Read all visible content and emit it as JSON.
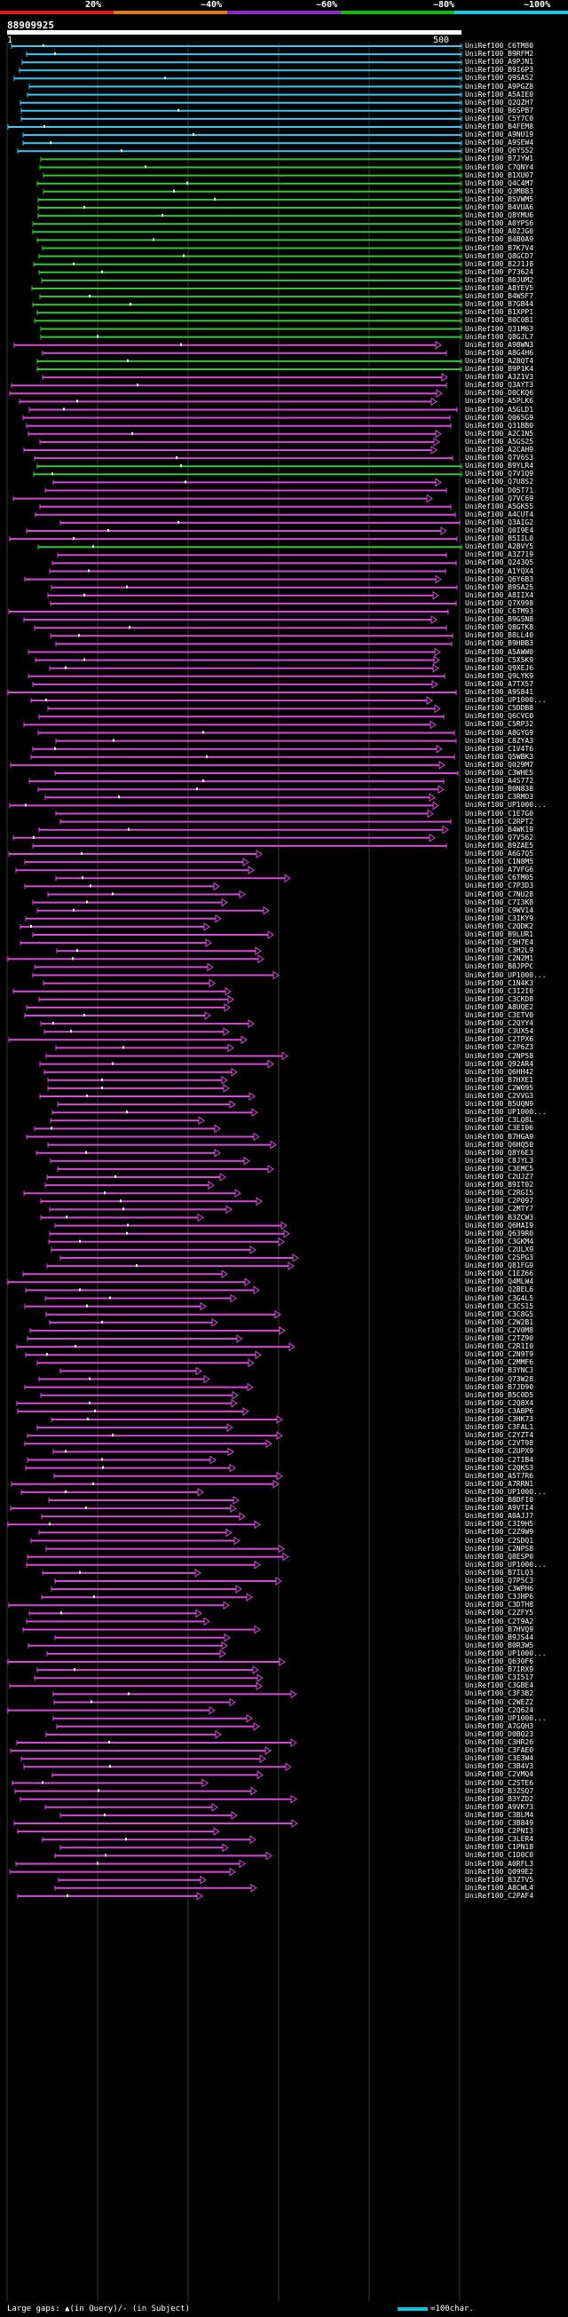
{
  "scale": {
    "labels": [
      "20%",
      "~40%",
      "~60%",
      "~80%",
      "~100%"
    ],
    "colors": [
      "#e0181e",
      "#e07a1e",
      "#8a2bbe",
      "#18b418",
      "#1ec8dc"
    ]
  },
  "query": {
    "id": "88909925",
    "start_label": "1",
    "end_label": "500"
  },
  "colors": {
    "cyan": "#3cc8f0",
    "green": "#32c832",
    "magenta": "#d24bd2",
    "grid": "#3a3a3a",
    "insert": "#ffffff"
  },
  "hits": [
    {
      "label": "UniRef100_C6TM80",
      "color": "cyan"
    },
    {
      "label": "UniRef100_B9RFM2",
      "color": "cyan"
    },
    {
      "label": "UniRef100_A9PJN1",
      "color": "cyan"
    },
    {
      "label": "UniRef100_B9I6P3",
      "color": "cyan"
    },
    {
      "label": "UniRef100_Q9SAS2",
      "color": "cyan"
    },
    {
      "label": "UniRef100_A9PGZ8",
      "color": "cyan"
    },
    {
      "label": "UniRef100_A5AIE0",
      "color": "cyan"
    },
    {
      "label": "UniRef100_Q2QZH7",
      "color": "cyan"
    },
    {
      "label": "UniRef100_B6SPB7",
      "color": "cyan"
    },
    {
      "label": "UniRef100_C5Y7C0",
      "color": "cyan"
    },
    {
      "label": "UniRef100_B4FEM8",
      "color": "cyan"
    },
    {
      "label": "UniRef100_A9NU19",
      "color": "cyan"
    },
    {
      "label": "UniRef100_A9SEW4",
      "color": "cyan"
    },
    {
      "label": "UniRef100_Q6YSS2",
      "color": "cyan"
    },
    {
      "label": "UniRef100_B7JYW1",
      "color": "green"
    },
    {
      "label": "UniRef100_C7QNY4",
      "color": "green"
    },
    {
      "label": "UniRef100_B1XU07",
      "color": "green"
    },
    {
      "label": "UniRef100_Q4C4M7",
      "color": "green"
    },
    {
      "label": "UniRef100_Q3MBB3",
      "color": "green"
    },
    {
      "label": "UniRef100_B5VWM5",
      "color": "green"
    },
    {
      "label": "UniRef100_B4VUA6",
      "color": "green"
    },
    {
      "label": "UniRef100_Q8YMU6",
      "color": "green"
    },
    {
      "label": "UniRef100_A0YPS6",
      "color": "green"
    },
    {
      "label": "UniRef100_A0ZJG0",
      "color": "green"
    },
    {
      "label": "UniRef100_B4B0A9",
      "color": "green"
    },
    {
      "label": "UniRef100_B7K7V4",
      "color": "green"
    },
    {
      "label": "UniRef100_Q8GCD7",
      "color": "green"
    },
    {
      "label": "UniRef100_B2J1J8",
      "color": "green"
    },
    {
      "label": "UniRef100_P73624",
      "color": "green"
    },
    {
      "label": "UniRef100_B0JUM2",
      "color": "green"
    },
    {
      "label": "UniRef100_A8YEV5",
      "color": "green"
    },
    {
      "label": "UniRef100_B4WSF7",
      "color": "green"
    },
    {
      "label": "UniRef100_B7GB44",
      "color": "green"
    },
    {
      "label": "UniRef100_B1XPP1",
      "color": "green"
    },
    {
      "label": "UniRef100_B0C0B1",
      "color": "green"
    },
    {
      "label": "UniRef100_Q31M63",
      "color": "green"
    },
    {
      "label": "UniRef100_Q8GJL7",
      "color": "green"
    },
    {
      "label": "UniRef100_A9BWN3",
      "color": "magenta"
    },
    {
      "label": "UniRef100_A8G4H6",
      "color": "magenta"
    },
    {
      "label": "UniRef100_A2BQT4",
      "color": "green"
    },
    {
      "label": "UniRef100_B9P1K4",
      "color": "green"
    },
    {
      "label": "UniRef100_A3Z1V3",
      "color": "magenta"
    },
    {
      "label": "UniRef100_Q3AYT3",
      "color": "magenta"
    },
    {
      "label": "UniRef100_D0CKQ6",
      "color": "magenta"
    },
    {
      "label": "UniRef100_A5PLK6",
      "color": "magenta"
    },
    {
      "label": "UniRef100_A5GLD1",
      "color": "magenta"
    },
    {
      "label": "UniRef100_Q065G9",
      "color": "magenta"
    },
    {
      "label": "UniRef100_Q31BB0",
      "color": "magenta"
    },
    {
      "label": "UniRef100_A2C1N5",
      "color": "magenta"
    },
    {
      "label": "UniRef100_A5GS25",
      "color": "magenta"
    },
    {
      "label": "UniRef100_A2CAH9",
      "color": "magenta"
    },
    {
      "label": "UniRef100_Q7V6S3",
      "color": "magenta"
    },
    {
      "label": "UniRef100_B9YLR4",
      "color": "green"
    },
    {
      "label": "UniRef100_Q7V1Q9",
      "color": "green"
    },
    {
      "label": "UniRef100_Q7U8S2",
      "color": "magenta"
    },
    {
      "label": "UniRef100_D05T71",
      "color": "magenta"
    },
    {
      "label": "UniRef100_Q7VC69",
      "color": "magenta"
    },
    {
      "label": "UniRef100_A5GK55",
      "color": "magenta"
    },
    {
      "label": "UniRef100_A4CUT4",
      "color": "magenta"
    },
    {
      "label": "UniRef100_Q3AIG2",
      "color": "magenta"
    },
    {
      "label": "UniRef100_Q0I9E4",
      "color": "magenta"
    },
    {
      "label": "UniRef100_B5IIL0",
      "color": "magenta"
    },
    {
      "label": "UniRef100_A2BVY5",
      "color": "green"
    },
    {
      "label": "UniRef100_A3Z719",
      "color": "magenta"
    },
    {
      "label": "UniRef100_Q243Q5",
      "color": "magenta"
    },
    {
      "label": "UniRef100_A1YQX4",
      "color": "magenta"
    },
    {
      "label": "UniRef100_Q6Y6B3",
      "color": "magenta"
    },
    {
      "label": "UniRef100_B9SA25",
      "color": "magenta"
    },
    {
      "label": "UniRef100_A8IIX4",
      "color": "magenta"
    },
    {
      "label": "UniRef100_Q7X998",
      "color": "magenta"
    },
    {
      "label": "UniRef100_C6TM93",
      "color": "magenta"
    },
    {
      "label": "UniRef100_B9GSN8",
      "color": "magenta"
    },
    {
      "label": "UniRef100_Q8GTK8",
      "color": "magenta"
    },
    {
      "label": "UniRef100_B8LL40",
      "color": "magenta"
    },
    {
      "label": "UniRef100_B9HBB3",
      "color": "magenta"
    },
    {
      "label": "UniRef100_A5AWW0",
      "color": "magenta"
    },
    {
      "label": "UniRef100_C5X5K9",
      "color": "magenta"
    },
    {
      "label": "UniRef100_Q9XEJ6",
      "color": "magenta"
    },
    {
      "label": "UniRef100_Q9LYK9",
      "color": "magenta"
    },
    {
      "label": "UniRef100_A7TX57",
      "color": "magenta"
    },
    {
      "label": "UniRef100_A9S841",
      "color": "magenta"
    },
    {
      "label": "UniRef100_UP1000...",
      "color": "magenta"
    },
    {
      "label": "UniRef100_C5DDB8",
      "color": "magenta"
    },
    {
      "label": "UniRef100_Q6CVC0",
      "color": "magenta"
    },
    {
      "label": "UniRef100_C5RP32",
      "color": "magenta"
    },
    {
      "label": "UniRef100_A8GYG9",
      "color": "magenta"
    },
    {
      "label": "UniRef100_C8ZYA3",
      "color": "magenta"
    },
    {
      "label": "UniRef100_C1V4T6",
      "color": "magenta"
    },
    {
      "label": "UniRef100_Q5WBK3",
      "color": "magenta"
    },
    {
      "label": "UniRef100_Q029M7",
      "color": "magenta"
    },
    {
      "label": "UniRef100_C3WHE5",
      "color": "magenta"
    },
    {
      "label": "UniRef100_A4S772",
      "color": "magenta"
    },
    {
      "label": "UniRef100_B0N838",
      "color": "magenta"
    },
    {
      "label": "UniRef100_C3RMO3",
      "color": "magenta"
    },
    {
      "label": "UniRef100_UP1000...",
      "color": "magenta"
    },
    {
      "label": "UniRef100_C1E7G0",
      "color": "magenta"
    },
    {
      "label": "UniRef100_C2RPT2",
      "color": "magenta"
    },
    {
      "label": "UniRef100_B4WK19",
      "color": "magenta"
    },
    {
      "label": "UniRef100_Q7V562",
      "color": "magenta"
    },
    {
      "label": "UniRef100_B9ZAE5",
      "color": "magenta"
    },
    {
      "label": "UniRef100_A6G7Q5",
      "color": "magenta"
    },
    {
      "label": "UniRef100_C1N8M5",
      "color": "magenta"
    },
    {
      "label": "UniRef100_A7VFG6",
      "color": "magenta"
    },
    {
      "label": "UniRef100_C6TM05",
      "color": "magenta"
    },
    {
      "label": "UniRef100_C7P3D3",
      "color": "magenta"
    },
    {
      "label": "UniRef100_C7NU28",
      "color": "magenta"
    },
    {
      "label": "UniRef100_C7I3K8",
      "color": "magenta"
    },
    {
      "label": "UniRef100_C9WV14",
      "color": "magenta"
    },
    {
      "label": "UniRef100_C3IKY9",
      "color": "magenta"
    },
    {
      "label": "UniRef100_C2QDK2",
      "color": "magenta"
    },
    {
      "label": "UniRef100_B9LUR1",
      "color": "magenta"
    },
    {
      "label": "UniRef100_C9H7E4",
      "color": "magenta"
    },
    {
      "label": "UniRef100_C3H2L9",
      "color": "magenta"
    },
    {
      "label": "UniRef100_C2N2M1",
      "color": "magenta"
    },
    {
      "label": "UniRef100_B8JPPC",
      "color": "magenta"
    },
    {
      "label": "UniRef100_UP1000...",
      "color": "magenta"
    },
    {
      "label": "UniRef100_C1N4K3",
      "color": "magenta"
    },
    {
      "label": "UniRef100_C3I2I0",
      "color": "magenta"
    },
    {
      "label": "UniRef100_C3CKD8",
      "color": "magenta"
    },
    {
      "label": "UniRef100_A8UQE2",
      "color": "magenta"
    },
    {
      "label": "UniRef100_C3ETV0",
      "color": "magenta"
    },
    {
      "label": "UniRef100_C2QYY4",
      "color": "magenta"
    },
    {
      "label": "UniRef100_C3UX54",
      "color": "magenta"
    },
    {
      "label": "UniRef100_C2TPX6",
      "color": "magenta"
    },
    {
      "label": "UniRef100_C2P6Z3",
      "color": "magenta"
    },
    {
      "label": "UniRef100_C2NP58",
      "color": "magenta"
    },
    {
      "label": "UniRef100_Q92AR4",
      "color": "magenta"
    },
    {
      "label": "UniRef100_Q6HH42",
      "color": "magenta"
    },
    {
      "label": "UniRef100_B7HXE1",
      "color": "magenta"
    },
    {
      "label": "UniRef100_C2W095",
      "color": "magenta"
    },
    {
      "label": "UniRef100_C2VVG3",
      "color": "magenta"
    },
    {
      "label": "UniRef100_B5UQN9",
      "color": "magenta"
    },
    {
      "label": "UniRef100_UP1000...",
      "color": "magenta"
    },
    {
      "label": "UniRef100_C3LQ8L",
      "color": "magenta"
    },
    {
      "label": "UniRef100_C3EI06",
      "color": "magenta"
    },
    {
      "label": "UniRef100_B7HGA9",
      "color": "magenta"
    },
    {
      "label": "UniRef100_Q6HQ50",
      "color": "magenta"
    },
    {
      "label": "UniRef100_Q8Y6E3",
      "color": "magenta"
    },
    {
      "label": "UniRef100_C8JYL3",
      "color": "magenta"
    },
    {
      "label": "UniRef100_C3EMC5",
      "color": "magenta"
    },
    {
      "label": "UniRef100_C2UJZ7",
      "color": "magenta"
    },
    {
      "label": "UniRef100_B9IT02",
      "color": "magenta"
    },
    {
      "label": "UniRef100_C2RGI5",
      "color": "magenta"
    },
    {
      "label": "UniRef100_C2P097",
      "color": "magenta"
    },
    {
      "label": "UniRef100_C2MTY7",
      "color": "magenta"
    },
    {
      "label": "UniRef100_B3ZCW3",
      "color": "magenta"
    },
    {
      "label": "UniRef100_Q6HAI9",
      "color": "magenta"
    },
    {
      "label": "UniRef100_Q639R0",
      "color": "magenta"
    },
    {
      "label": "UniRef100_C3GKM4",
      "color": "magenta"
    },
    {
      "label": "UniRef100_C2ULX9",
      "color": "magenta"
    },
    {
      "label": "UniRef100_C2SPG3",
      "color": "magenta"
    },
    {
      "label": "UniRef100_Q81FG9",
      "color": "magenta"
    },
    {
      "label": "UniRef100_C1EZ66",
      "color": "magenta"
    },
    {
      "label": "UniRef100_Q4MLW4",
      "color": "magenta"
    },
    {
      "label": "UniRef100_Q2BEL6",
      "color": "magenta"
    },
    {
      "label": "UniRef100_C3G4L5",
      "color": "magenta"
    },
    {
      "label": "UniRef100_C3CS15",
      "color": "magenta"
    },
    {
      "label": "UniRef100_C3C8G5",
      "color": "magenta"
    },
    {
      "label": "UniRef100_C2W2B1",
      "color": "magenta"
    },
    {
      "label": "UniRef100_C2V0M8",
      "color": "magenta"
    },
    {
      "label": "UniRef100_C2TZ90",
      "color": "magenta"
    },
    {
      "label": "UniRef100_C2R1I0",
      "color": "magenta"
    },
    {
      "label": "UniRef100_C2N9T9",
      "color": "magenta"
    },
    {
      "label": "UniRef100_C2MMF6",
      "color": "magenta"
    },
    {
      "label": "UniRef100_B3YNC3",
      "color": "magenta"
    },
    {
      "label": "UniRef100_Q73W28",
      "color": "magenta"
    },
    {
      "label": "UniRef100_B7JD90",
      "color": "magenta"
    },
    {
      "label": "UniRef100_B5C0D5",
      "color": "magenta"
    },
    {
      "label": "UniRef100_C2Q8X4",
      "color": "magenta"
    },
    {
      "label": "UniRef100_C3ABP6",
      "color": "magenta"
    },
    {
      "label": "UniRef100_C3HK73",
      "color": "magenta"
    },
    {
      "label": "UniRef100_C3FAL1",
      "color": "magenta"
    },
    {
      "label": "UniRef100_C2YZT4",
      "color": "magenta"
    },
    {
      "label": "UniRef100_C2VT98",
      "color": "magenta"
    },
    {
      "label": "UniRef100_C2UPX9",
      "color": "magenta"
    },
    {
      "label": "UniRef100_C2TIB4",
      "color": "magenta"
    },
    {
      "label": "UniRef100_C2QKS3",
      "color": "magenta"
    },
    {
      "label": "UniRef100_A5T7R6",
      "color": "magenta"
    },
    {
      "label": "UniRef100_A7RRN1",
      "color": "magenta"
    },
    {
      "label": "UniRef100_UP1000...",
      "color": "magenta"
    },
    {
      "label": "UniRef100_B8DFI0",
      "color": "magenta"
    },
    {
      "label": "UniRef100_A9VTI4",
      "color": "magenta"
    },
    {
      "label": "UniRef100_A0AJJ7",
      "color": "magenta"
    },
    {
      "label": "UniRef100_C3I9H5",
      "color": "magenta"
    },
    {
      "label": "UniRef100_C2Z9W9",
      "color": "magenta"
    },
    {
      "label": "UniRef100_C2SDQ1",
      "color": "magenta"
    },
    {
      "label": "UniRef100_C2NPS8",
      "color": "magenta"
    },
    {
      "label": "UniRef100_Q8ESP0",
      "color": "magenta"
    },
    {
      "label": "UniRef100_UP1000...",
      "color": "magenta"
    },
    {
      "label": "UniRef100_B7ILQ3",
      "color": "magenta"
    },
    {
      "label": "UniRef100_Q7P5C3",
      "color": "magenta"
    },
    {
      "label": "UniRef100_C3WPH6",
      "color": "magenta"
    },
    {
      "label": "UniRef100_C3JHP6",
      "color": "magenta"
    },
    {
      "label": "UniRef100_C3DTH8",
      "color": "magenta"
    },
    {
      "label": "UniRef100_C2ZFY5",
      "color": "magenta"
    },
    {
      "label": "UniRef100_C2T9A2",
      "color": "magenta"
    },
    {
      "label": "UniRef100_B7HVQ9",
      "color": "magenta"
    },
    {
      "label": "UniRef100_B9JS44",
      "color": "magenta"
    },
    {
      "label": "UniRef100_B0R3W5",
      "color": "magenta"
    },
    {
      "label": "UniRef100_UP1000...",
      "color": "magenta"
    },
    {
      "label": "UniRef100_Q630F6",
      "color": "magenta"
    },
    {
      "label": "UniRef100_B7IRX9",
      "color": "magenta"
    },
    {
      "label": "UniRef100_C3I517",
      "color": "magenta"
    },
    {
      "label": "UniRef100_C3GBE4",
      "color": "magenta"
    },
    {
      "label": "UniRef100_C3F3B2",
      "color": "magenta"
    },
    {
      "label": "UniRef100_C2WEZ2",
      "color": "magenta"
    },
    {
      "label": "UniRef100_C2Q624",
      "color": "magenta"
    },
    {
      "label": "UniRef100_UP1000...",
      "color": "magenta"
    },
    {
      "label": "UniRef100_A7GQH3",
      "color": "magenta"
    },
    {
      "label": "UniRef100_D0BQ23",
      "color": "magenta"
    },
    {
      "label": "UniRef100_C3HR26",
      "color": "magenta"
    },
    {
      "label": "UniRef100_C3FAE0",
      "color": "magenta"
    },
    {
      "label": "UniRef100_C3E3W4",
      "color": "magenta"
    },
    {
      "label": "UniRef100_C3B4V3",
      "color": "magenta"
    },
    {
      "label": "UniRef100_C2VMQ4",
      "color": "magenta"
    },
    {
      "label": "UniRef100_C2STE6",
      "color": "magenta"
    },
    {
      "label": "UniRef100_B3ZSQ7",
      "color": "magenta"
    },
    {
      "label": "UniRef100_B3YZD2",
      "color": "magenta"
    },
    {
      "label": "UniRef100_A9VK73",
      "color": "magenta"
    },
    {
      "label": "UniRef100_C3BLM4",
      "color": "magenta"
    },
    {
      "label": "UniRef100_C3B849",
      "color": "magenta"
    },
    {
      "label": "UniRef100_C2PNI3",
      "color": "magenta"
    },
    {
      "label": "UniRef100_C3LER4",
      "color": "magenta"
    },
    {
      "label": "UniRef100_C1PN18",
      "color": "magenta"
    },
    {
      "label": "UniRef100_C1D0C0",
      "color": "magenta"
    },
    {
      "label": "UniRef100_A0RFL3",
      "color": "magenta"
    },
    {
      "label": "UniRef100_Q099E2",
      "color": "magenta"
    },
    {
      "label": "UniRef100_B3ZTV5",
      "color": "magenta"
    },
    {
      "label": "UniRef100_A8CWL4",
      "color": "magenta"
    },
    {
      "label": "UniRef100_C2PAF4",
      "color": "magenta"
    }
  ],
  "footer": {
    "legend": "Large gaps: ▲(in Query)/- (in Subject)",
    "scale_legend": "=100char."
  }
}
